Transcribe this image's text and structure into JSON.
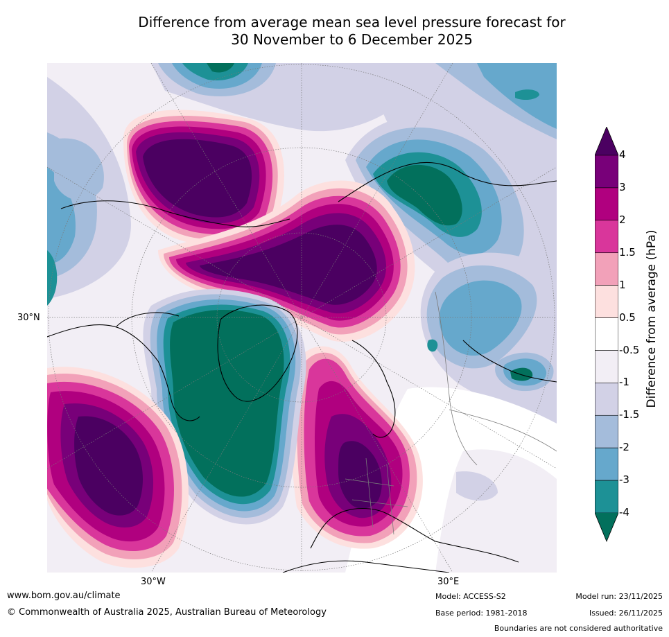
{
  "title": {
    "line1": "Difference from average mean sea level pressure forecast for",
    "line2": "30 November to 6 December 2025"
  },
  "map": {
    "lat_label": "30°N",
    "lon_labels": [
      "30°W",
      "30°E"
    ]
  },
  "colorbar": {
    "title": "Difference from average (hPa)",
    "ticks": [
      "4",
      "3",
      "2",
      "1.5",
      "1",
      "0.5",
      "-0.5",
      "-1",
      "-1.5",
      "-2",
      "-3",
      "-4"
    ],
    "colors": [
      "#4b0061",
      "#780079",
      "#b0007f",
      "#d9369b",
      "#f2a1b9",
      "#fde0df",
      "#ffffff",
      "#f2eef5",
      "#d2d1e6",
      "#a4bcdb",
      "#66a8cc",
      "#1d9196",
      "#02705c"
    ]
  },
  "footer": {
    "website": "www.bom.gov.au/climate",
    "copyright": "© Commonwealth of Australia 2025, Australian Bureau of Meteorology",
    "model": "Model: ACCESS-S2",
    "base_period": "Base period: 1981-2018",
    "model_run": "Model run: 23/11/2025",
    "issued": "Issued: 26/11/2025",
    "disclaimer": "Boundaries are not considered authoritative"
  }
}
